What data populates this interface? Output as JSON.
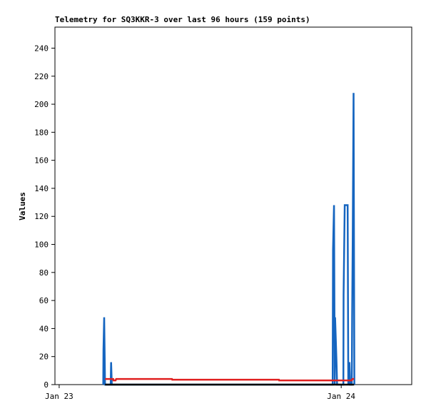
{
  "chart_data": {
    "type": "line",
    "title": "Telemetry for SQ3KKR-3 over last 96 hours (159 points)",
    "y_label": "Values",
    "xlim": [
      -0.36,
      30.0
    ],
    "xticks": [
      {
        "value": 0,
        "label": "Jan 23"
      },
      {
        "value": 24,
        "label": "Jan 24"
      }
    ],
    "ylim": [
      0,
      255
    ],
    "yticks": [
      0,
      20,
      40,
      60,
      80,
      100,
      120,
      140,
      160,
      180,
      200,
      220,
      240
    ],
    "grid": false,
    "series": [
      {
        "color": "#1565c0",
        "x": [
          3.75,
          3.77,
          3.83,
          3.9,
          4.38,
          4.42,
          4.48,
          23.27,
          23.3,
          23.39,
          23.45,
          23.48,
          23.54,
          23.6,
          23.65,
          24.18,
          24.2,
          24.3,
          24.55,
          24.6,
          24.65,
          24.7,
          24.76,
          24.9,
          24.93,
          24.98,
          25.05,
          25.12
        ],
        "values": [
          0,
          25,
          48,
          0,
          0,
          16,
          0,
          0,
          96,
          128,
          0,
          48,
          32,
          16,
          0,
          0,
          64,
          128,
          128,
          0,
          10,
          16,
          0,
          0,
          48,
          104,
          208,
          0
        ]
      },
      {
        "color": "#e02020",
        "x": [
          3.9,
          4.6,
          4.62,
          4.8,
          4.85,
          9.6,
          9.62,
          18.7,
          18.72,
          24.9,
          24.95,
          25.1
        ],
        "values": [
          4,
          4,
          3,
          3,
          4,
          4,
          3.5,
          3.5,
          3,
          3,
          4,
          4
        ]
      },
      {
        "color": "#000000",
        "x": [
          3.9,
          25.1
        ],
        "values": [
          0,
          0
        ]
      }
    ]
  }
}
